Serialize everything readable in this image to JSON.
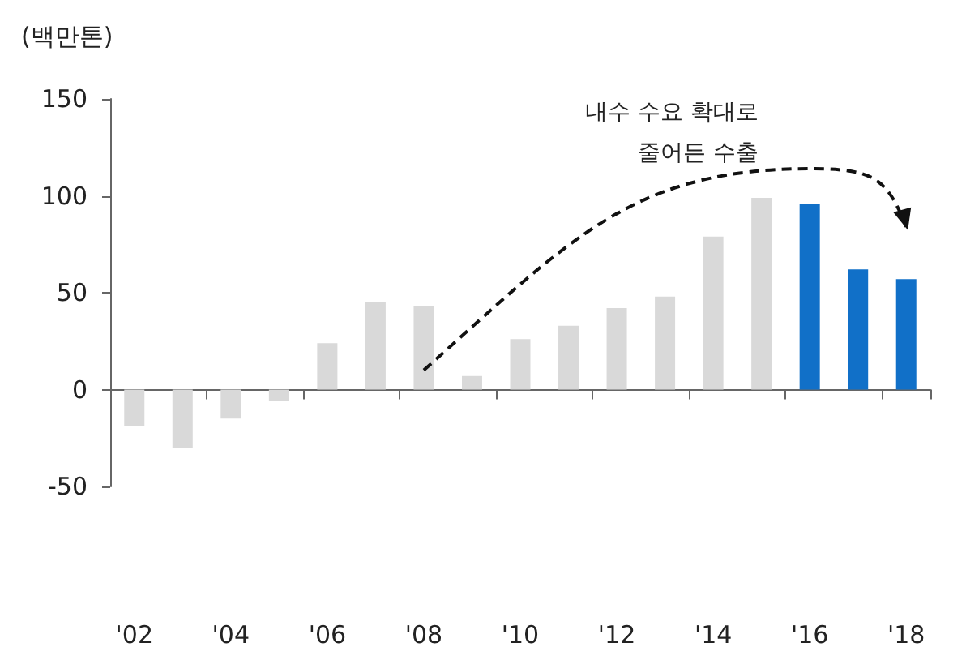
{
  "chart_data": {
    "type": "bar",
    "ylabel": "(백만톤)",
    "categories": [
      "'02",
      null,
      "'04",
      null,
      "'06",
      null,
      "'08",
      null,
      "'10",
      null,
      "'12",
      null,
      "'14",
      null,
      "'16",
      null,
      "'18"
    ],
    "values": [
      -19,
      -30,
      -15,
      -6,
      24,
      45,
      43,
      7,
      26,
      33,
      42,
      48,
      79,
      99,
      96,
      62,
      57
    ],
    "colors": [
      "#d9d9d9",
      "#d9d9d9",
      "#d9d9d9",
      "#d9d9d9",
      "#d9d9d9",
      "#d9d9d9",
      "#d9d9d9",
      "#d9d9d9",
      "#d9d9d9",
      "#d9d9d9",
      "#d9d9d9",
      "#d9d9d9",
      "#d9d9d9",
      "#d9d9d9",
      "#1170c8",
      "#1170c8",
      "#1170c8"
    ],
    "ylim": [
      -50,
      150
    ],
    "yticks": [
      -50,
      0,
      50,
      100,
      150
    ],
    "annotations": [
      "내수 수요 확대로\n줄어든 수출"
    ]
  }
}
